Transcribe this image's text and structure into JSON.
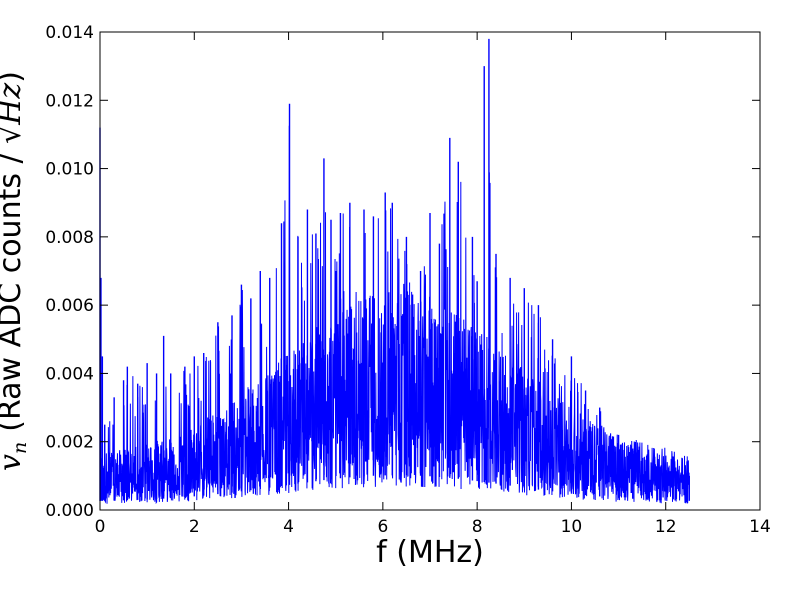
{
  "chart_data": {
    "type": "line",
    "title": "",
    "xlabel": "f (MHz)",
    "ylabel": "v_n (Raw ADC counts / √Hz)",
    "ylabel_parts": {
      "symbol": "v",
      "subscript": "n",
      "text": "(Raw ADC counts / ",
      "root": "√",
      "unit": "Hz",
      "close": ")"
    },
    "xlim": [
      0,
      14
    ],
    "ylim": [
      0,
      0.014
    ],
    "x_ticks": [
      0,
      2,
      4,
      6,
      8,
      10,
      12,
      14
    ],
    "y_ticks": [
      0.0,
      0.002,
      0.004,
      0.006,
      0.008,
      0.01,
      0.012,
      0.014
    ],
    "x_tick_labels": [
      "0",
      "2",
      "4",
      "6",
      "8",
      "10",
      "12",
      "14"
    ],
    "y_tick_labels": [
      "0.000",
      "0.002",
      "0.004",
      "0.006",
      "0.008",
      "0.010",
      "0.012",
      "0.014"
    ],
    "grid": false,
    "legend": "none",
    "line_color": "#0000ff",
    "series": [
      {
        "x": [
          0.0,
          0.02,
          0.05,
          0.1,
          0.3,
          0.5,
          0.58,
          0.8,
          1.0,
          1.2,
          1.35,
          1.5,
          1.8,
          2.0,
          2.2,
          2.5,
          2.8,
          3.0,
          3.2,
          3.4,
          3.6,
          3.85,
          4.02,
          4.2,
          4.4,
          4.58,
          4.75,
          4.9,
          5.1,
          5.3,
          5.6,
          5.8,
          6.05,
          6.2,
          6.5,
          6.8,
          7.0,
          7.2,
          7.42,
          7.6,
          7.9,
          8.0,
          8.15,
          8.25,
          8.4,
          8.7,
          9.0,
          9.3,
          9.6,
          10.0,
          10.3,
          10.6,
          11.0,
          11.3,
          11.6,
          11.9,
          12.2,
          12.5
        ],
        "y": [
          0.0112,
          0.0068,
          0.0045,
          0.0025,
          0.0033,
          0.0038,
          0.0042,
          0.0037,
          0.0043,
          0.004,
          0.0051,
          0.004,
          0.0042,
          0.0045,
          0.0046,
          0.0055,
          0.0057,
          0.0066,
          0.0062,
          0.007,
          0.0068,
          0.0084,
          0.0119,
          0.008,
          0.0088,
          0.0081,
          0.0103,
          0.0085,
          0.0087,
          0.009,
          0.0088,
          0.0086,
          0.0093,
          0.009,
          0.008,
          0.007,
          0.0087,
          0.0078,
          0.0109,
          0.0102,
          0.008,
          0.0067,
          0.013,
          0.0138,
          0.0075,
          0.0068,
          0.0065,
          0.006,
          0.005,
          0.0045,
          0.0035,
          0.003,
          0.0022,
          0.0018,
          0.0015,
          0.0013,
          0.0011,
          0.001
        ]
      }
    ]
  }
}
